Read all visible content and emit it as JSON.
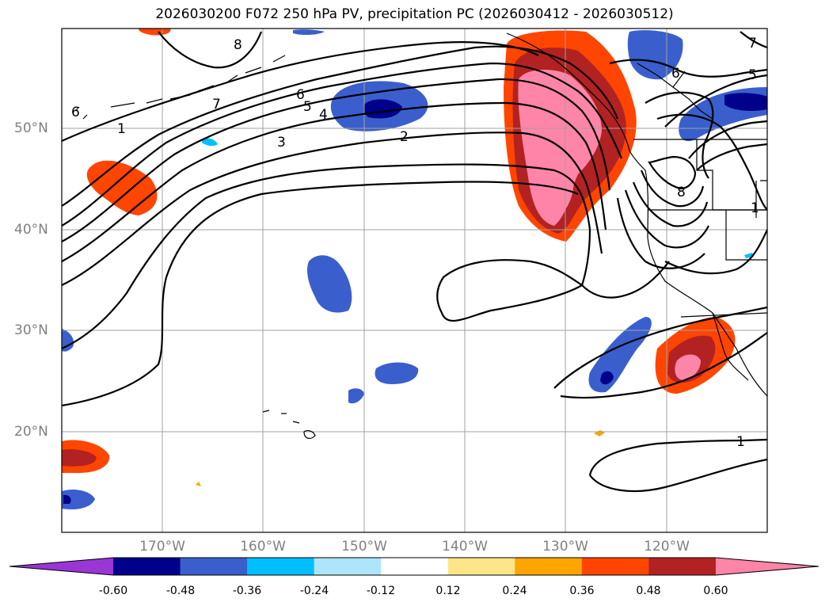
{
  "title": "2026030200 F072 250 hPa PV, precipitation PC (2026030412 - 2026030512)",
  "map": {
    "lat_labels": [
      "50°N",
      "40°N",
      "30°N",
      "20°N"
    ],
    "lon_labels": [
      "170°W",
      "160°W",
      "150°W",
      "140°W",
      "130°W",
      "120°W"
    ],
    "pv_contour_labels": [
      "1",
      "2",
      "3",
      "4",
      "5",
      "6",
      "7",
      "8",
      "6",
      "5",
      "1",
      "8",
      "7",
      "6",
      "1"
    ],
    "colors": {
      "grid": "#a0a0a0",
      "coast": "#000000"
    }
  },
  "colorbar": {
    "tick_labels": [
      "-0.60",
      "-0.48",
      "-0.36",
      "-0.24",
      "-0.12",
      "0.12",
      "0.24",
      "0.36",
      "0.48",
      "0.60"
    ],
    "colors": [
      "#9a35d6",
      "#00008b",
      "#3a5fcd",
      "#00bfff",
      "#ade5fa",
      "#ffffff",
      "#fde68a",
      "#ffa500",
      "#ff4500",
      "#b22222",
      "#ff85a8"
    ]
  }
}
